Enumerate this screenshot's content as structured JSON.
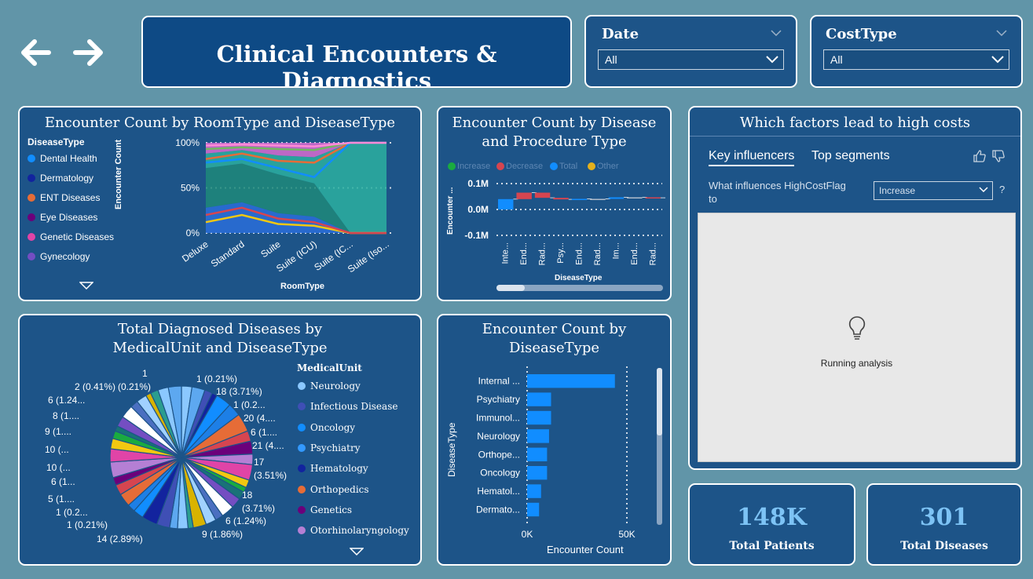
{
  "header": {
    "title": "Clinical Encounters & Diagnostics"
  },
  "filters": [
    {
      "label": "Date",
      "value": "All"
    },
    {
      "label": "CostType",
      "value": "All"
    }
  ],
  "kpis": [
    {
      "value": "148K",
      "label": "Total Patients"
    },
    {
      "value": "301",
      "label": "Total Diseases"
    }
  ],
  "influencers": {
    "title": "Which factors lead to high costs",
    "tabs": [
      "Key influencers",
      "Top segments"
    ],
    "question_prefix": "What influences HighCostFlag",
    "question_suffix": "to",
    "selected": "Increase",
    "help": "?",
    "status": "Running analysis"
  },
  "chart_data": [
    {
      "type": "area",
      "title": "Encounter Count by RoomType and DiseaseType",
      "stacked": "100%",
      "xlabel": "RoomType",
      "ylabel": "Encounter Count",
      "legend_title": "DiseaseType",
      "legend": [
        "Dental Health",
        "Dermatology",
        "ENT Diseases",
        "Eye Diseases",
        "Genetic Diseases",
        "Gynecology"
      ],
      "categories": [
        "Deluxe",
        "Standard",
        "Suite",
        "Suite (ICU)",
        "Suite (IC...",
        "Suite (Iso..."
      ],
      "yticks": [
        "100%",
        "50%",
        "0%"
      ]
    },
    {
      "type": "bar",
      "subtype": "waterfall",
      "title": "Encounter Count by Disease and Procedure Type",
      "legend": [
        "Increase",
        "Decrease",
        "Total",
        "Other"
      ],
      "xlabel": "DiseaseType",
      "ylabel": "Encounter ...",
      "yticks": [
        "0.1M",
        "0.0M",
        "-0.1M"
      ],
      "categories": [
        "Inte...",
        "End...",
        "Rad...",
        "Psy...",
        "End...",
        "Rad...",
        "Im...",
        "End...",
        "Rad..."
      ],
      "values": [
        0.04,
        0.025,
        -0.02,
        -0.006,
        0.002,
        0,
        0.006,
        0,
        -0.002
      ]
    },
    {
      "type": "pie",
      "title": "Total Diagnosed Diseases by MedicalUnit and DiseaseType",
      "legend_title": "MedicalUnit",
      "legend": [
        "Neurology",
        "Infectious Disease",
        "Oncology",
        "Psychiatry",
        "Hematology",
        "Orthopedics",
        "Genetics",
        "Otorhinolaryngology"
      ],
      "labels": [
        "1 (0.21%)",
        "18 (3.71%)",
        "1 (0.2...",
        "20 (4....",
        "6 (1....",
        "21 (4....",
        "17",
        "(3.51%)",
        "18",
        "(3.71%)",
        "6 (1.24%)",
        "9 (1.86%)",
        "14 (2.89%)",
        "1 (0.21%)",
        "1 (0.2...",
        "5 (1....",
        "6 (1...",
        "10 (...",
        "10 (...",
        "9 (1....",
        "8 (1....",
        "6 (1.24...",
        "2 (0.41%)",
        "(0.21%)",
        "1"
      ]
    },
    {
      "type": "bar",
      "orientation": "horizontal",
      "title": "Encounter Count by DiseaseType",
      "xlabel": "Encounter Count",
      "ylabel": "DiseaseType",
      "categories": [
        "Internal ...",
        "Psychiatry",
        "Immunol...",
        "Neurology",
        "Orthope...",
        "Oncology",
        "Hematol...",
        "Dermato..."
      ],
      "values": [
        44000,
        12000,
        12000,
        11000,
        10000,
        10000,
        7000,
        6000
      ],
      "xticks": [
        "0K",
        "50K"
      ],
      "xlim": [
        0,
        50000
      ]
    }
  ]
}
